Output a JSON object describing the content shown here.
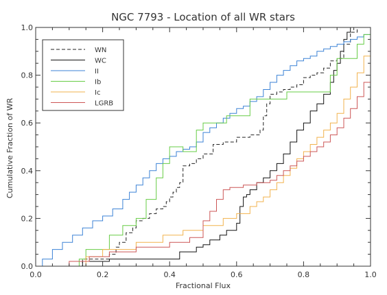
{
  "chart_data": {
    "type": "line",
    "title": "NGC 7793 - Location of all WR stars",
    "xlabel": "Fractional Flux",
    "ylabel": "Cumulative Fraction of WR",
    "xlim": [
      0.0,
      1.0
    ],
    "ylim": [
      0.0,
      1.0
    ],
    "xticks": [
      "0.0",
      "0.2",
      "0.4",
      "0.6",
      "0.8",
      "1.0"
    ],
    "yticks": [
      "0.0",
      "0.2",
      "0.4",
      "0.6",
      "0.8",
      "1.0"
    ],
    "grid": false,
    "legend": "top-left",
    "series": [
      {
        "name": "WN",
        "color": "#222222",
        "dash": "dashed",
        "x": [
          0.1,
          0.14,
          0.22,
          0.24,
          0.25,
          0.27,
          0.29,
          0.3,
          0.32,
          0.34,
          0.36,
          0.38,
          0.39,
          0.4,
          0.41,
          0.42,
          0.43,
          0.44,
          0.46,
          0.48,
          0.5,
          0.53,
          0.56,
          0.6,
          0.64,
          0.67,
          0.68,
          0.69,
          0.7,
          0.72,
          0.74,
          0.76,
          0.78,
          0.8,
          0.82,
          0.84,
          0.86,
          0.88,
          0.9,
          0.92,
          0.94,
          0.96
        ],
        "y": [
          0.0,
          0.03,
          0.05,
          0.08,
          0.1,
          0.14,
          0.16,
          0.19,
          0.2,
          0.22,
          0.24,
          0.25,
          0.27,
          0.29,
          0.31,
          0.33,
          0.35,
          0.42,
          0.43,
          0.45,
          0.47,
          0.51,
          0.52,
          0.54,
          0.55,
          0.57,
          0.63,
          0.68,
          0.72,
          0.73,
          0.74,
          0.75,
          0.76,
          0.79,
          0.8,
          0.81,
          0.83,
          0.86,
          0.87,
          0.93,
          0.98,
          1.0
        ]
      },
      {
        "name": "WC",
        "color": "#111111",
        "dash": "solid",
        "x": [
          0.0,
          0.14,
          0.22,
          0.43,
          0.48,
          0.5,
          0.52,
          0.55,
          0.57,
          0.6,
          0.61,
          0.62,
          0.63,
          0.64,
          0.66,
          0.68,
          0.7,
          0.72,
          0.74,
          0.76,
          0.78,
          0.8,
          0.82,
          0.84,
          0.86,
          0.88,
          0.89,
          0.9,
          0.91,
          0.92,
          0.93,
          0.94,
          0.95
        ],
        "y": [
          0.0,
          0.02,
          0.03,
          0.06,
          0.08,
          0.09,
          0.11,
          0.13,
          0.15,
          0.18,
          0.25,
          0.29,
          0.3,
          0.32,
          0.35,
          0.37,
          0.4,
          0.43,
          0.47,
          0.52,
          0.57,
          0.6,
          0.65,
          0.68,
          0.72,
          0.77,
          0.82,
          0.85,
          0.9,
          0.95,
          0.98,
          1.0,
          1.0
        ]
      },
      {
        "name": "II",
        "color": "#3b82d6",
        "dash": "solid",
        "x": [
          0.0,
          0.02,
          0.05,
          0.08,
          0.11,
          0.14,
          0.17,
          0.2,
          0.23,
          0.26,
          0.28,
          0.3,
          0.32,
          0.34,
          0.36,
          0.38,
          0.4,
          0.42,
          0.44,
          0.46,
          0.48,
          0.5,
          0.52,
          0.54,
          0.56,
          0.58,
          0.6,
          0.62,
          0.64,
          0.66,
          0.68,
          0.7,
          0.72,
          0.74,
          0.76,
          0.78,
          0.8,
          0.82,
          0.84,
          0.86,
          0.88,
          0.9,
          0.92,
          0.94,
          0.96,
          0.98,
          1.0
        ],
        "y": [
          0.0,
          0.03,
          0.07,
          0.1,
          0.13,
          0.16,
          0.19,
          0.21,
          0.24,
          0.28,
          0.31,
          0.34,
          0.37,
          0.4,
          0.43,
          0.45,
          0.46,
          0.48,
          0.49,
          0.5,
          0.52,
          0.56,
          0.58,
          0.6,
          0.62,
          0.64,
          0.66,
          0.67,
          0.69,
          0.71,
          0.74,
          0.77,
          0.8,
          0.82,
          0.84,
          0.86,
          0.87,
          0.88,
          0.9,
          0.91,
          0.92,
          0.93,
          0.94,
          0.95,
          0.96,
          0.97,
          1.0
        ]
      },
      {
        "name": "Ib",
        "color": "#66cc44",
        "dash": "solid",
        "x": [
          0.0,
          0.13,
          0.15,
          0.22,
          0.26,
          0.3,
          0.33,
          0.36,
          0.38,
          0.4,
          0.44,
          0.48,
          0.5,
          0.57,
          0.63,
          0.64,
          0.66,
          0.7,
          0.75,
          0.84,
          0.88,
          0.9,
          0.94,
          0.96,
          0.98,
          1.0
        ],
        "y": [
          0.0,
          0.03,
          0.07,
          0.13,
          0.17,
          0.2,
          0.28,
          0.37,
          0.43,
          0.5,
          0.48,
          0.57,
          0.6,
          0.63,
          0.63,
          0.7,
          0.7,
          0.7,
          0.73,
          0.73,
          0.8,
          0.87,
          0.87,
          0.93,
          0.97,
          1.0
        ]
      },
      {
        "name": "Ic",
        "color": "#f2b24c",
        "dash": "solid",
        "x": [
          0.0,
          0.15,
          0.2,
          0.3,
          0.38,
          0.44,
          0.5,
          0.56,
          0.6,
          0.64,
          0.66,
          0.68,
          0.7,
          0.72,
          0.74,
          0.76,
          0.78,
          0.8,
          0.82,
          0.84,
          0.86,
          0.88,
          0.9,
          0.92,
          0.94,
          0.96,
          0.98,
          1.0
        ],
        "y": [
          0.0,
          0.04,
          0.07,
          0.1,
          0.13,
          0.15,
          0.17,
          0.2,
          0.22,
          0.25,
          0.27,
          0.29,
          0.32,
          0.35,
          0.38,
          0.41,
          0.45,
          0.48,
          0.51,
          0.54,
          0.57,
          0.6,
          0.64,
          0.7,
          0.75,
          0.81,
          0.88,
          0.96
        ]
      },
      {
        "name": "LGRB",
        "color": "#cc5555",
        "dash": "solid",
        "x": [
          0.0,
          0.1,
          0.16,
          0.22,
          0.3,
          0.4,
          0.46,
          0.5,
          0.52,
          0.54,
          0.56,
          0.58,
          0.62,
          0.66,
          0.7,
          0.72,
          0.74,
          0.76,
          0.78,
          0.8,
          0.82,
          0.84,
          0.86,
          0.88,
          0.9,
          0.92,
          0.94,
          0.96,
          0.98,
          1.0
        ],
        "y": [
          0.0,
          0.02,
          0.04,
          0.06,
          0.08,
          0.1,
          0.12,
          0.19,
          0.23,
          0.28,
          0.32,
          0.33,
          0.34,
          0.35,
          0.36,
          0.38,
          0.4,
          0.42,
          0.44,
          0.46,
          0.48,
          0.5,
          0.52,
          0.55,
          0.58,
          0.62,
          0.66,
          0.71,
          0.77,
          0.84
        ]
      }
    ]
  }
}
